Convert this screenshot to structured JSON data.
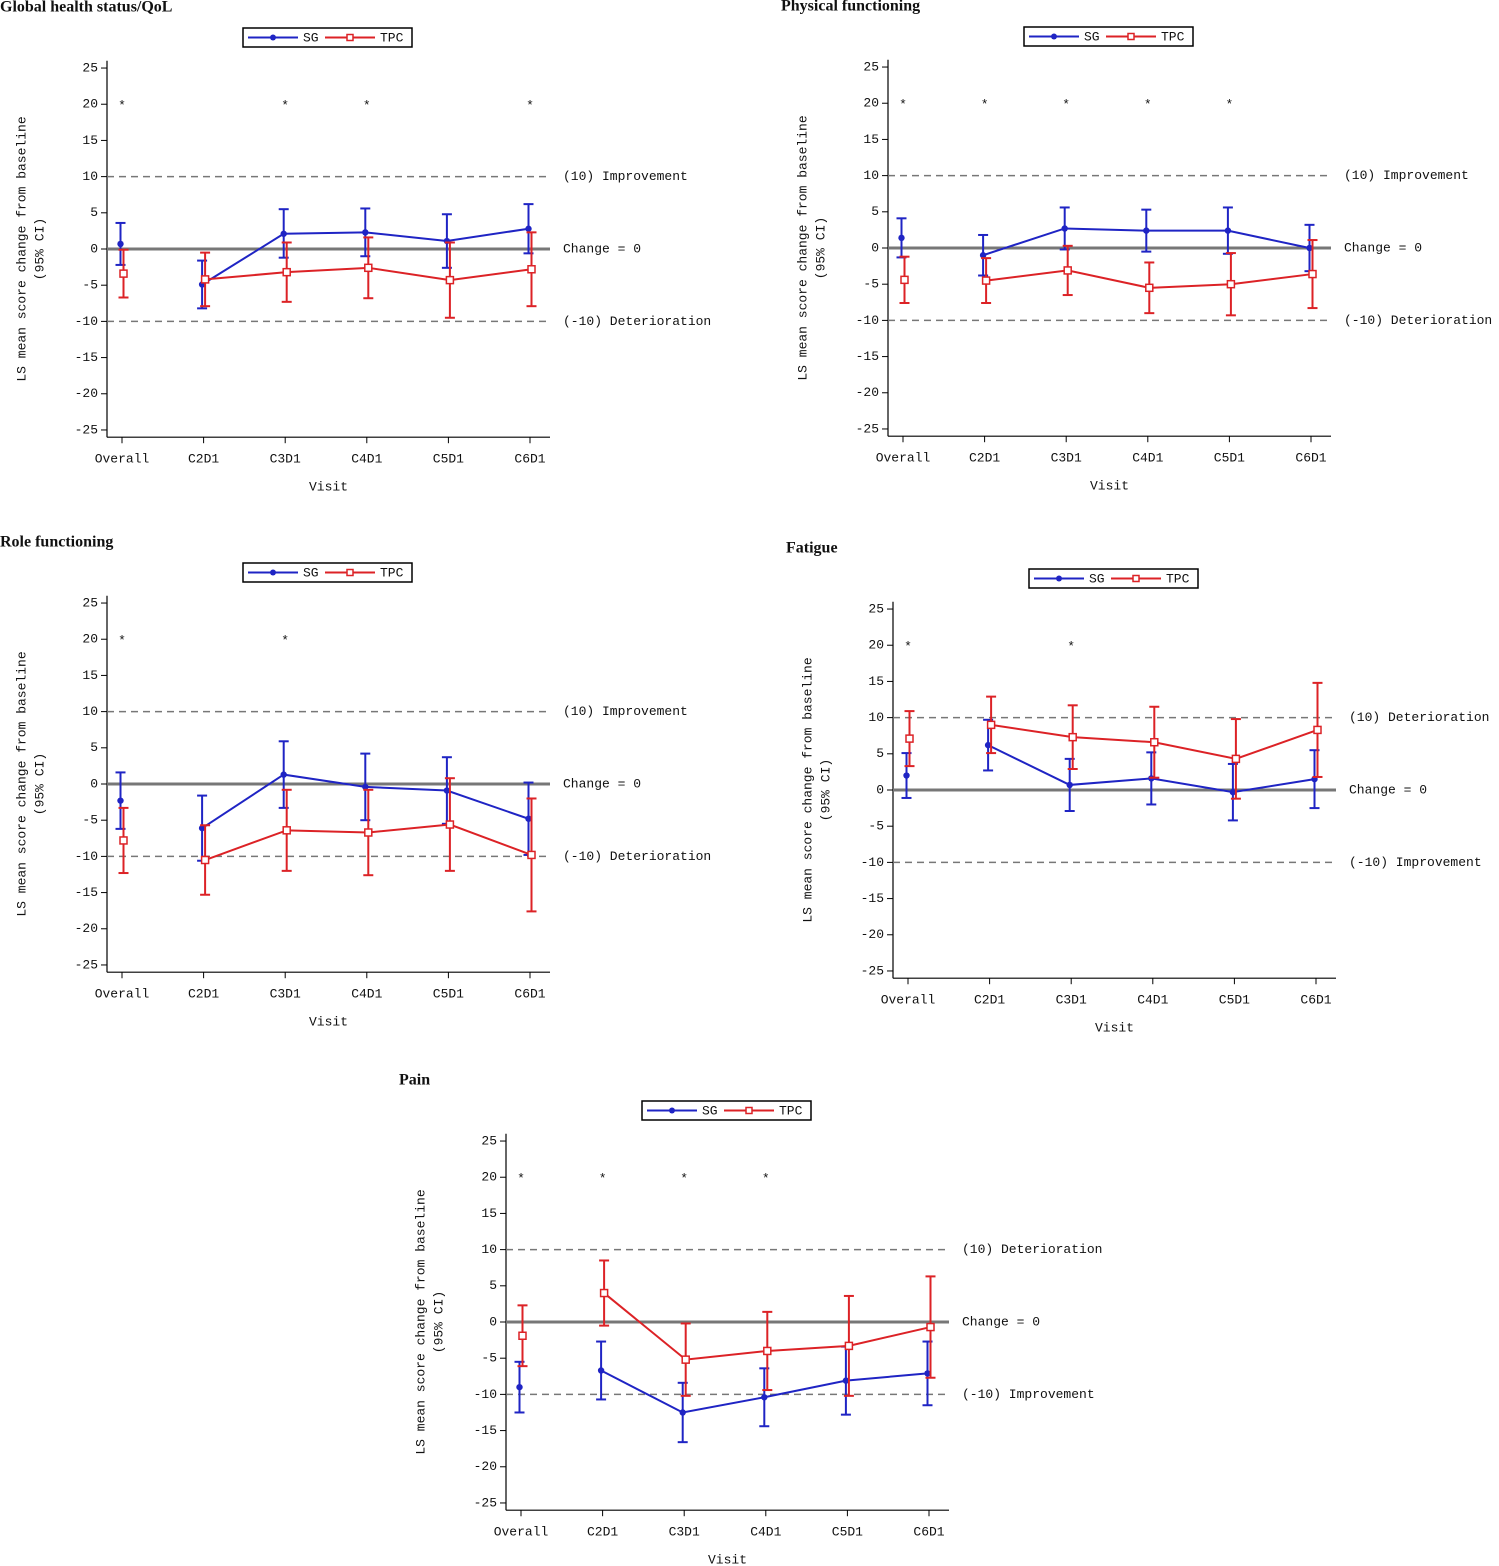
{
  "chart_data": [
    {
      "type": "line",
      "title": "Global health status/QoL",
      "xlabel": "Visit",
      "ylabel": [
        "LS mean score change from baseline",
        "(95% CI)"
      ],
      "categories": [
        "Overall",
        "C2D1",
        "C3D1",
        "C4D1",
        "C5D1",
        "C6D1"
      ],
      "significance": [
        "*",
        null,
        "*",
        "*",
        null,
        "*"
      ],
      "series": [
        {
          "name": "SG",
          "color": "#1f24c4",
          "marker": "circle",
          "values": [
            0.7,
            -4.9,
            2.1,
            2.3,
            1.1,
            2.8
          ],
          "lower": [
            -2.2,
            -8.2,
            -1.2,
            -1.0,
            -2.6,
            -0.6
          ],
          "upper": [
            3.6,
            -1.6,
            5.5,
            5.6,
            4.8,
            6.2
          ]
        },
        {
          "name": "TPC",
          "color": "#dc2226",
          "marker": "square",
          "values": [
            -3.4,
            -4.2,
            -3.2,
            -2.6,
            -4.3,
            -2.8
          ],
          "lower": [
            -6.7,
            -7.9,
            -7.3,
            -6.8,
            -9.5,
            -7.9
          ],
          "upper": [
            -0.1,
            -0.5,
            0.9,
            1.6,
            0.9,
            2.3
          ]
        }
      ],
      "reference_lines": [
        {
          "value": 10,
          "label": "(10) Improvement",
          "style": "dashed"
        },
        {
          "value": 0,
          "label": "Change = 0",
          "style": "solid"
        },
        {
          "value": -10,
          "label": "(-10) Deterioration",
          "style": "dashed"
        }
      ],
      "ylim": [
        -26,
        26
      ],
      "yticks": [
        25,
        20,
        15,
        10,
        5,
        0,
        -5,
        -10,
        -15,
        -20,
        -25
      ]
    },
    {
      "type": "line",
      "title": "Physical functioning",
      "xlabel": "Visit",
      "ylabel": [
        "LS mean score change from baseline",
        "(95% CI)"
      ],
      "categories": [
        "Overall",
        "C2D1",
        "C3D1",
        "C4D1",
        "C5D1",
        "C6D1"
      ],
      "significance": [
        "*",
        "*",
        "*",
        "*",
        "*",
        null
      ],
      "series": [
        {
          "name": "SG",
          "color": "#1f24c4",
          "marker": "circle",
          "values": [
            1.4,
            -1.0,
            2.7,
            2.4,
            2.4,
            0.0
          ],
          "lower": [
            -1.3,
            -3.8,
            -0.2,
            -0.5,
            -0.8,
            -3.2
          ],
          "upper": [
            4.1,
            1.8,
            5.6,
            5.3,
            5.6,
            3.2
          ]
        },
        {
          "name": "TPC",
          "color": "#dc2226",
          "marker": "square",
          "values": [
            -4.4,
            -4.5,
            -3.1,
            -5.5,
            -5.0,
            -3.6
          ],
          "lower": [
            -7.6,
            -7.6,
            -6.5,
            -9.0,
            -9.3,
            -8.3
          ],
          "upper": [
            -1.2,
            -1.4,
            0.3,
            -2.0,
            -0.7,
            1.1
          ]
        }
      ],
      "reference_lines": [
        {
          "value": 10,
          "label": "(10) Improvement",
          "style": "dashed"
        },
        {
          "value": 0,
          "label": "Change = 0",
          "style": "solid"
        },
        {
          "value": -10,
          "label": "(-10) Deterioration",
          "style": "dashed"
        }
      ],
      "ylim": [
        -26,
        26
      ],
      "yticks": [
        25,
        20,
        15,
        10,
        5,
        0,
        -5,
        -10,
        -15,
        -20,
        -25
      ]
    },
    {
      "type": "line",
      "title": "Role functioning",
      "xlabel": "Visit",
      "ylabel": [
        "LS mean score change from baseline",
        "(95% CI)"
      ],
      "categories": [
        "Overall",
        "C2D1",
        "C3D1",
        "C4D1",
        "C5D1",
        "C6D1"
      ],
      "significance": [
        "*",
        null,
        "*",
        null,
        null,
        null
      ],
      "series": [
        {
          "name": "SG",
          "color": "#1f24c4",
          "marker": "circle",
          "values": [
            -2.3,
            -6.1,
            1.3,
            -0.4,
            -0.9,
            -4.8
          ],
          "lower": [
            -6.2,
            -10.6,
            -3.3,
            -5.0,
            -5.5,
            -9.8
          ],
          "upper": [
            1.6,
            -1.6,
            5.9,
            4.2,
            3.7,
            0.2
          ]
        },
        {
          "name": "TPC",
          "color": "#dc2226",
          "marker": "square",
          "values": [
            -7.8,
            -10.5,
            -6.4,
            -6.7,
            -5.6,
            -9.8
          ],
          "lower": [
            -12.3,
            -15.3,
            -12.0,
            -12.6,
            -12.0,
            -17.6
          ],
          "upper": [
            -3.3,
            -5.7,
            -0.8,
            -0.8,
            0.8,
            -2.0
          ]
        }
      ],
      "reference_lines": [
        {
          "value": 10,
          "label": "(10) Improvement",
          "style": "dashed"
        },
        {
          "value": 0,
          "label": "Change = 0",
          "style": "solid"
        },
        {
          "value": -10,
          "label": "(-10) Deterioration",
          "style": "dashed"
        }
      ],
      "ylim": [
        -26,
        26
      ],
      "yticks": [
        25,
        20,
        15,
        10,
        5,
        0,
        -5,
        -10,
        -15,
        -20,
        -25
      ]
    },
    {
      "type": "line",
      "title": "Fatigue",
      "xlabel": "Visit",
      "ylabel": [
        "LS mean score change from baseline",
        "(95% CI)"
      ],
      "categories": [
        "Overall",
        "C2D1",
        "C3D1",
        "C4D1",
        "C5D1",
        "C6D1"
      ],
      "significance": [
        "*",
        null,
        "*",
        null,
        null,
        null
      ],
      "series": [
        {
          "name": "SG",
          "color": "#1f24c4",
          "marker": "circle",
          "values": [
            2.0,
            6.2,
            0.7,
            1.6,
            -0.3,
            1.5
          ],
          "lower": [
            -1.1,
            2.7,
            -2.9,
            -2.0,
            -4.2,
            -2.5
          ],
          "upper": [
            5.1,
            9.7,
            4.3,
            5.2,
            3.6,
            5.5
          ]
        },
        {
          "name": "TPC",
          "color": "#dc2226",
          "marker": "square",
          "values": [
            7.1,
            9.0,
            7.3,
            6.6,
            4.3,
            8.3
          ],
          "lower": [
            3.3,
            5.1,
            2.9,
            1.7,
            -1.2,
            1.8
          ],
          "upper": [
            10.9,
            12.9,
            11.7,
            11.5,
            9.8,
            14.8
          ]
        }
      ],
      "reference_lines": [
        {
          "value": 10,
          "label": "(10) Deterioration",
          "style": "dashed"
        },
        {
          "value": 0,
          "label": "Change = 0",
          "style": "solid"
        },
        {
          "value": -10,
          "label": "(-10) Improvement",
          "style": "dashed"
        }
      ],
      "ylim": [
        -26,
        26
      ],
      "yticks": [
        25,
        20,
        15,
        10,
        5,
        0,
        -5,
        -10,
        -15,
        -20,
        -25
      ]
    },
    {
      "type": "line",
      "title": "Pain",
      "xlabel": "Visit",
      "ylabel": [
        "LS mean score change from baseline",
        "(95% CI)"
      ],
      "categories": [
        "Overall",
        "C2D1",
        "C3D1",
        "C4D1",
        "C5D1",
        "C6D1"
      ],
      "significance": [
        "*",
        "*",
        "*",
        "*",
        null,
        null
      ],
      "series": [
        {
          "name": "SG",
          "color": "#1f24c4",
          "marker": "circle",
          "values": [
            -9.0,
            -6.7,
            -12.5,
            -10.4,
            -8.1,
            -7.1
          ],
          "lower": [
            -12.5,
            -10.7,
            -16.6,
            -14.4,
            -12.8,
            -11.5
          ],
          "upper": [
            -5.5,
            -2.7,
            -8.4,
            -6.4,
            -3.4,
            -2.7
          ]
        },
        {
          "name": "TPC",
          "color": "#dc2226",
          "marker": "square",
          "values": [
            -1.9,
            4.0,
            -5.2,
            -4.0,
            -3.3,
            -0.7
          ],
          "lower": [
            -6.1,
            -0.5,
            -10.2,
            -9.4,
            -10.2,
            -7.7
          ],
          "upper": [
            2.3,
            8.5,
            -0.2,
            1.4,
            3.6,
            6.3
          ]
        }
      ],
      "reference_lines": [
        {
          "value": 10,
          "label": "(10) Deterioration",
          "style": "dashed"
        },
        {
          "value": 0,
          "label": "Change = 0",
          "style": "solid"
        },
        {
          "value": -10,
          "label": "(-10) Improvement",
          "style": "dashed"
        }
      ],
      "ylim": [
        -26,
        26
      ],
      "yticks": [
        25,
        20,
        15,
        10,
        5,
        0,
        -5,
        -10,
        -15,
        -20,
        -25
      ]
    }
  ]
}
